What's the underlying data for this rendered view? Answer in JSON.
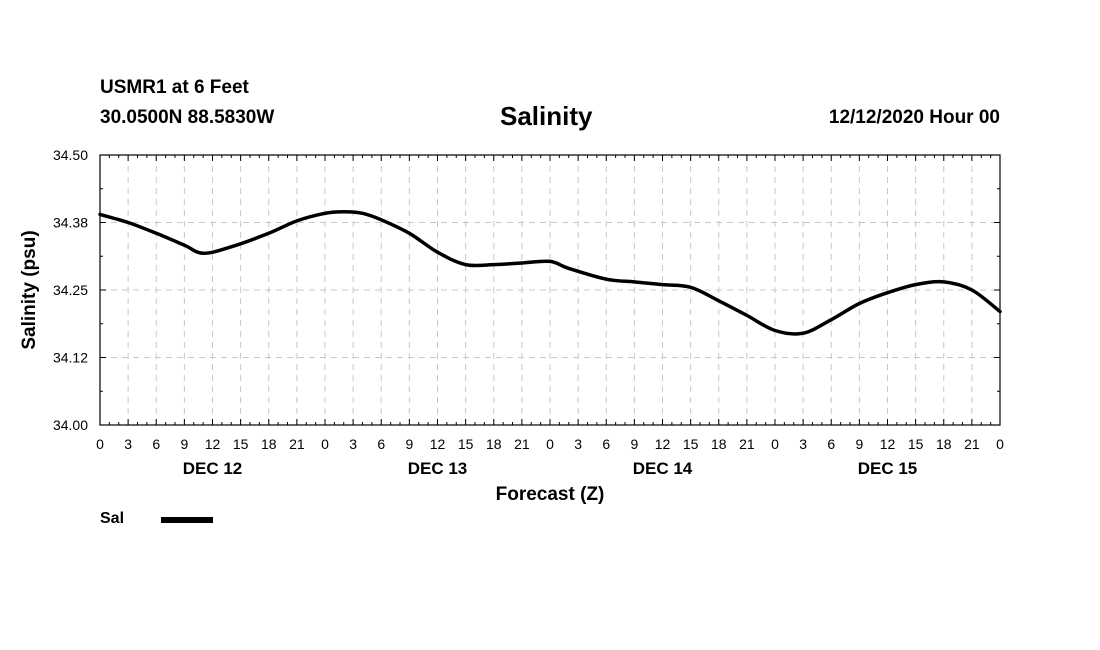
{
  "header": {
    "station": "USMR1 at 6 Feet",
    "coords": "30.0500N 88.5830W",
    "title": "Salinity",
    "datetime": "12/12/2020 Hour 00"
  },
  "legend": {
    "label": "Sal"
  },
  "chart_data": {
    "type": "line",
    "title": "Salinity",
    "xlabel": "Forecast (Z)",
    "ylabel": "Salinity (psu)",
    "x_unit": "forecast hours from 12/12/2020 00Z",
    "xlim": [
      0,
      96
    ],
    "ylim": [
      34.0,
      34.5
    ],
    "ytick_values": [
      34.0,
      34.125,
      34.25,
      34.375,
      34.5
    ],
    "ytick_labels": [
      "34.00",
      "34.12",
      "34.25",
      "34.38",
      "34.50"
    ],
    "xtick_hours": [
      0,
      3,
      6,
      9,
      12,
      15,
      18,
      21,
      24,
      27,
      30,
      33,
      36,
      39,
      42,
      45,
      48,
      51,
      54,
      57,
      60,
      63,
      66,
      69,
      72,
      75,
      78,
      81,
      84,
      87,
      90,
      93,
      96
    ],
    "xtick_labels": [
      "0",
      "3",
      "6",
      "9",
      "12",
      "15",
      "18",
      "21",
      "0",
      "3",
      "6",
      "9",
      "12",
      "15",
      "18",
      "21",
      "0",
      "3",
      "6",
      "9",
      "12",
      "15",
      "18",
      "21",
      "0",
      "3",
      "6",
      "9",
      "12",
      "15",
      "18",
      "21",
      "0"
    ],
    "day_labels": [
      {
        "hour": 12,
        "label": "DEC 12"
      },
      {
        "hour": 36,
        "label": "DEC 13"
      },
      {
        "hour": 60,
        "label": "DEC 14"
      },
      {
        "hour": 84,
        "label": "DEC 15"
      }
    ],
    "grid": true,
    "series": [
      {
        "name": "Sal",
        "x": [
          0,
          3,
          6,
          9,
          11,
          14,
          18,
          21,
          24,
          26,
          28,
          30,
          33,
          36,
          39,
          42,
          45,
          48,
          50,
          54,
          57,
          60,
          63,
          66,
          69,
          72,
          75,
          78,
          81,
          84,
          87,
          90,
          93,
          96
        ],
        "values": [
          34.39,
          34.375,
          34.355,
          34.333,
          34.318,
          34.33,
          34.355,
          34.378,
          34.392,
          34.395,
          34.392,
          34.38,
          34.355,
          34.32,
          34.297,
          34.297,
          34.3,
          34.303,
          34.29,
          34.27,
          34.265,
          34.26,
          34.255,
          34.23,
          34.203,
          34.175,
          34.17,
          34.195,
          34.225,
          34.245,
          34.26,
          34.265,
          34.25,
          34.21
        ]
      }
    ]
  }
}
